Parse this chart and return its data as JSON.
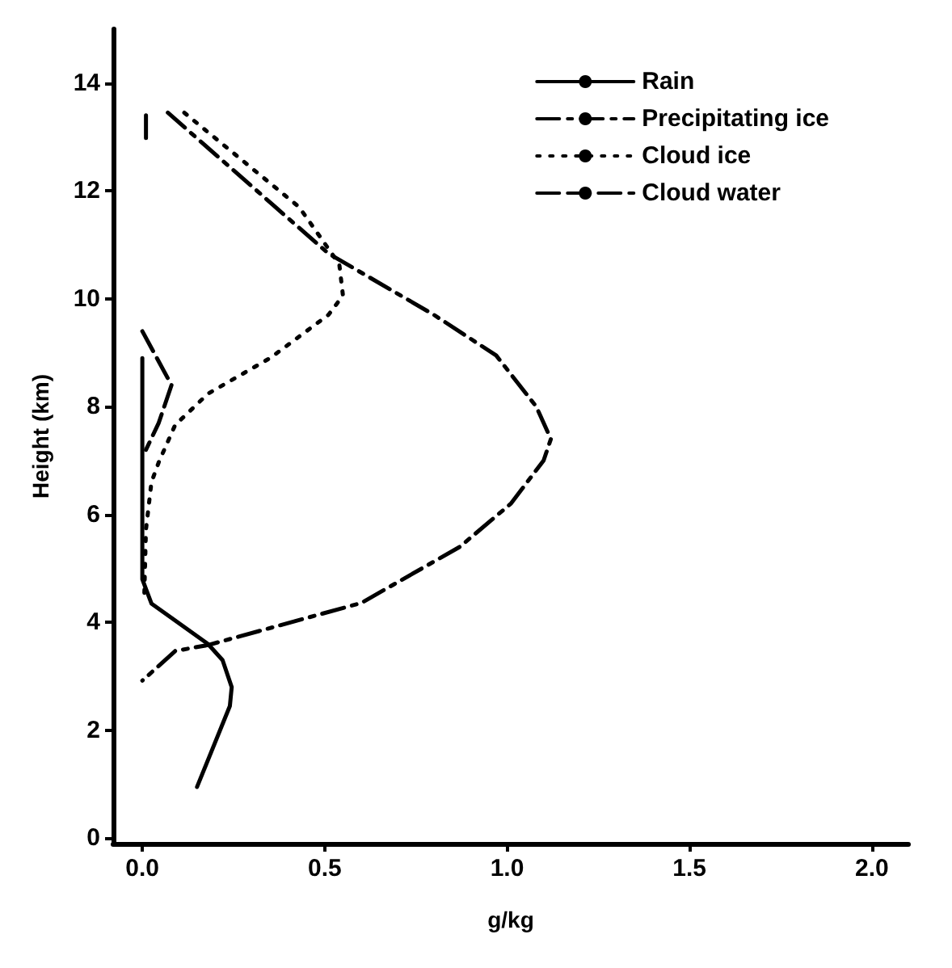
{
  "chart_data": {
    "type": "line",
    "xlabel": "g/kg",
    "ylabel": "Height (km)",
    "xlim": [
      -0.08,
      2.1
    ],
    "ylim": [
      -0.1,
      15
    ],
    "xticks": [
      {
        "value": 0,
        "label": "0.0"
      },
      {
        "value": 0.5,
        "label": "0.5"
      },
      {
        "value": 1,
        "label": "1.0"
      },
      {
        "value": 1.5,
        "label": "1.5"
      },
      {
        "value": 2,
        "label": "2.0"
      }
    ],
    "yticks": [
      0,
      2,
      4,
      6,
      8,
      10,
      12,
      14
    ],
    "grid": false,
    "legend": "top right",
    "marker": "none",
    "series": [
      {
        "name": "Rain",
        "color": "#000000",
        "line_style": "solid",
        "x": [
          0,
          0,
          0,
          0,
          0.025,
          0.18,
          0.22,
          0.245,
          0.24,
          0.15
        ],
        "values": [
          8.9,
          7.5,
          6,
          4.8,
          4.35,
          3.6,
          3.3,
          2.8,
          2.45,
          0.95
        ]
      },
      {
        "name": "Precipitating ice",
        "color": "#000000",
        "line_style": "dashdot",
        "x": [
          0.07,
          0.51,
          0.8,
          0.97,
          1.08,
          1.12,
          1.1,
          1.01,
          0.87,
          0.6,
          0.32,
          0.18,
          0.09,
          0
        ],
        "values": [
          13.45,
          10.84,
          9.7,
          8.95,
          8.0,
          7.4,
          7.0,
          6.2,
          5.4,
          4.36,
          3.84,
          3.58,
          3.47,
          2.92
        ]
      },
      {
        "name": "Cloud ice",
        "color": "#000000",
        "line_style": "dotted",
        "x": [
          0.115,
          0.43,
          0.54,
          0.55,
          0.51,
          0.35,
          0.18,
          0.09,
          0.045,
          0.025,
          0.01,
          0.005
        ],
        "values": [
          13.45,
          11.7,
          10.64,
          10.06,
          9.7,
          8.9,
          8.24,
          7.66,
          6.97,
          6.6,
          5.72,
          4.4
        ]
      },
      {
        "name": "Cloud water",
        "color": "#000000",
        "line_style": "dashed",
        "x": [
          0.01,
          0.01,
          null,
          0,
          0.08,
          0.045,
          0.01
        ],
        "values": [
          13.4,
          12.9,
          null,
          9.4,
          8.4,
          7.7,
          7.2
        ]
      }
    ]
  }
}
